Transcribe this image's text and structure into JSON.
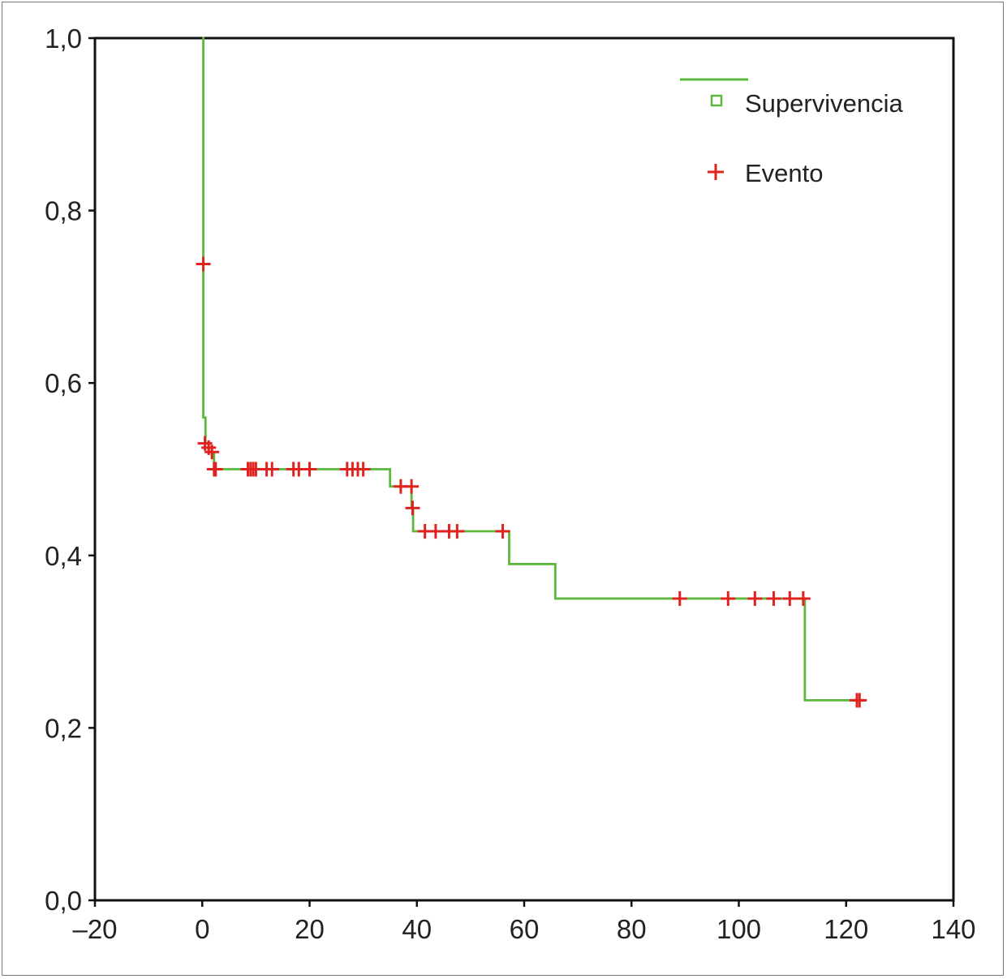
{
  "chart_data": {
    "type": "line",
    "title": "",
    "xlabel": "",
    "ylabel": "",
    "xlim": [
      -20,
      140
    ],
    "ylim": [
      0,
      1
    ],
    "x_ticks": [
      -20,
      0,
      20,
      40,
      60,
      80,
      100,
      120,
      140
    ],
    "x_tick_labels": [
      "–20",
      "0",
      "20",
      "40",
      "60",
      "80",
      "100",
      "120",
      "140"
    ],
    "y_ticks": [
      0,
      0.2,
      0.4,
      0.6,
      0.8,
      1.0
    ],
    "y_tick_labels": [
      "0,0",
      "0,2",
      "0,4",
      "0,6",
      "0,8",
      "1,0"
    ],
    "grid": false,
    "legend": {
      "placement": "top-right",
      "entries": [
        {
          "label": "Supervivencia",
          "marker": "square-open",
          "color": "#5cb83c"
        },
        {
          "label": "Evento",
          "marker": "plus",
          "color": "#e0231e"
        }
      ]
    },
    "series": [
      {
        "name": "Supervivencia",
        "kind": "step",
        "color": "#5cb83c",
        "points": [
          [
            0,
            1.0
          ],
          [
            0.2,
            0.56
          ],
          [
            0.6,
            0.53
          ],
          [
            1.2,
            0.52
          ],
          [
            2.2,
            0.5
          ],
          [
            35,
            0.48
          ],
          [
            39,
            0.455
          ],
          [
            39.3,
            0.428
          ],
          [
            57.2,
            0.39
          ],
          [
            65.8,
            0.35
          ],
          [
            112.3,
            0.232
          ],
          [
            122.5,
            0.232
          ]
        ]
      },
      {
        "name": "Evento",
        "kind": "marker",
        "color": "#e0231e",
        "points": [
          [
            0.2,
            0.738
          ],
          [
            0.5,
            0.53
          ],
          [
            1.2,
            0.525
          ],
          [
            1.8,
            0.52
          ],
          [
            2.2,
            0.5
          ],
          [
            2.5,
            0.5
          ],
          [
            8.5,
            0.5
          ],
          [
            9,
            0.5
          ],
          [
            9.5,
            0.5
          ],
          [
            10,
            0.5
          ],
          [
            12,
            0.5
          ],
          [
            13,
            0.5
          ],
          [
            17,
            0.5
          ],
          [
            18,
            0.5
          ],
          [
            20,
            0.5
          ],
          [
            27,
            0.5
          ],
          [
            28,
            0.5
          ],
          [
            29,
            0.5
          ],
          [
            30,
            0.5
          ],
          [
            37,
            0.48
          ],
          [
            39,
            0.48
          ],
          [
            39.2,
            0.455
          ],
          [
            41.5,
            0.428
          ],
          [
            43.5,
            0.428
          ],
          [
            46,
            0.428
          ],
          [
            47.5,
            0.428
          ],
          [
            56,
            0.428
          ],
          [
            89,
            0.35
          ],
          [
            98,
            0.35
          ],
          [
            103,
            0.35
          ],
          [
            106.5,
            0.35
          ],
          [
            109.5,
            0.35
          ],
          [
            112,
            0.35
          ],
          [
            122,
            0.232
          ],
          [
            122.5,
            0.232
          ]
        ]
      }
    ]
  }
}
